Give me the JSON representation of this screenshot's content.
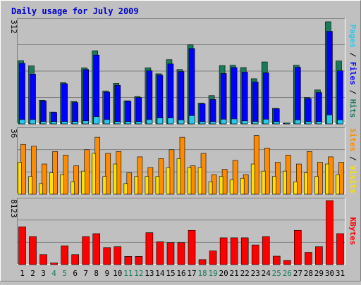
{
  "title": "Daily usage for July 2009",
  "colors": {
    "background": "#c0c0c0",
    "plot_background": "#c0c0c0",
    "grid": "#808080",
    "title": "#0000cc",
    "hits": "#1b7a5a",
    "files": "#0000ff",
    "pages": "#28c8f0",
    "sites": "#ff8c00",
    "visits": "#ffe000",
    "kbytes": "#ff0000",
    "weekend": "#1b7a5a",
    "weekday": "#000000"
  },
  "labels": {
    "pages": "Pages",
    "files": "Files",
    "hits": "Hits",
    "sites": "Sites",
    "visits": "Visits",
    "kbytes": "KBytes",
    "sep": " / "
  },
  "chart_data": [
    {
      "type": "bar",
      "panel": "hits-files-pages",
      "ylabel_max": "312",
      "ylim": [
        0,
        312
      ],
      "grid": true,
      "categories": [
        "1",
        "2",
        "3",
        "4",
        "5",
        "6",
        "7",
        "8",
        "9",
        "10",
        "11",
        "12",
        "13",
        "14",
        "15",
        "16",
        "17",
        "18",
        "19",
        "20",
        "21",
        "22",
        "23",
        "24",
        "25",
        "26",
        "27",
        "28",
        "29",
        "30",
        "31"
      ],
      "weekend_days": [
        "4",
        "5",
        "11",
        "12",
        "18",
        "19",
        "25",
        "26"
      ],
      "series": [
        {
          "name": "Hits",
          "values": [
            192,
            176,
            72,
            36,
            125,
            68,
            170,
            222,
            100,
            123,
            70,
            83,
            170,
            152,
            195,
            165,
            240,
            63,
            86,
            177,
            178,
            171,
            137,
            188,
            47,
            1,
            178,
            80,
            103,
            310,
            191
          ]
        },
        {
          "name": "Files",
          "values": [
            184,
            151,
            70,
            35,
            122,
            65,
            165,
            209,
            96,
            117,
            69,
            80,
            161,
            148,
            182,
            159,
            229,
            61,
            74,
            153,
            171,
            157,
            127,
            155,
            46,
            1,
            172,
            77,
            95,
            281,
            161
          ]
        },
        {
          "name": "Pages",
          "values": [
            13,
            13,
            7,
            7,
            7,
            7,
            9,
            22,
            13,
            7,
            7,
            7,
            13,
            18,
            18,
            12,
            25,
            7,
            7,
            14,
            15,
            9,
            7,
            14,
            7,
            1,
            12,
            7,
            7,
            27,
            12
          ]
        }
      ]
    },
    {
      "type": "bar",
      "panel": "sites-visits",
      "ylabel_max": "36",
      "ylim": [
        0,
        36
      ],
      "grid": true,
      "categories": [
        "1",
        "2",
        "3",
        "4",
        "5",
        "6",
        "7",
        "8",
        "9",
        "10",
        "11",
        "12",
        "13",
        "14",
        "15",
        "16",
        "17",
        "18",
        "19",
        "20",
        "21",
        "22",
        "23",
        "24",
        "25",
        "26",
        "27",
        "28",
        "29",
        "30",
        "31"
      ],
      "series": [
        {
          "name": "Sites",
          "values": [
            28,
            27,
            17,
            24,
            22,
            16,
            25,
            32,
            23,
            24,
            12,
            21,
            15,
            20,
            25,
            32,
            16,
            23,
            11,
            14,
            19,
            11,
            33,
            26,
            18,
            22,
            17,
            24,
            18,
            21,
            18
          ]
        },
        {
          "name": "Visits",
          "values": [
            18,
            10,
            6,
            12,
            11,
            7,
            13,
            23,
            10,
            17,
            6,
            10,
            10,
            10,
            15,
            20,
            15,
            15,
            7,
            10,
            8,
            9,
            17,
            13,
            10,
            13,
            7,
            12,
            10,
            17,
            11
          ]
        }
      ]
    },
    {
      "type": "bar",
      "panel": "kbytes",
      "ylabel_max": "8123",
      "ylim": [
        0,
        8123
      ],
      "grid": true,
      "categories": [
        "1",
        "2",
        "3",
        "4",
        "5",
        "6",
        "7",
        "8",
        "9",
        "10",
        "11",
        "12",
        "13",
        "14",
        "15",
        "16",
        "17",
        "18",
        "19",
        "20",
        "21",
        "22",
        "23",
        "24",
        "25",
        "26",
        "27",
        "28",
        "29",
        "30",
        "31"
      ],
      "series": [
        {
          "name": "KBytes",
          "values": [
            4790,
            3550,
            1270,
            200,
            2380,
            1270,
            3550,
            3930,
            2160,
            2270,
            1040,
            1040,
            4050,
            2890,
            2790,
            2790,
            4350,
            640,
            1740,
            3400,
            3400,
            3400,
            2490,
            3550,
            1070,
            520,
            4350,
            1560,
            2270,
            8123,
            3930
          ]
        }
      ]
    }
  ]
}
